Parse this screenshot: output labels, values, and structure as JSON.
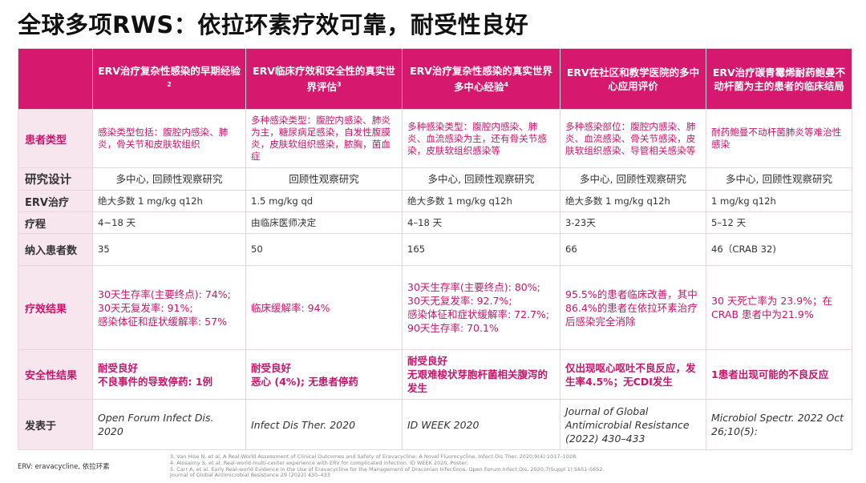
{
  "title": "全球多项RWS：依拉环素疗效可靠，耐受性良好",
  "header": {
    "corner": "",
    "columns": [
      {
        "label": "ERV治疗复杂性感染的早期经验",
        "sup": "2"
      },
      {
        "label": "ERV临床疗效和安全性的真实世界评估",
        "sup": "3"
      },
      {
        "label": "ERV治疗复杂性感染的真实世界多中心经验",
        "sup": "4"
      },
      {
        "label": "ERV在社区和教学医院的多中心应用评价",
        "sup": ""
      },
      {
        "label": "ERV治疗碳青霉烯耐药鲍曼不动杆菌为主的患者的临床结局",
        "sup": ""
      }
    ]
  },
  "rows": {
    "patient_type": {
      "label": "患者类型",
      "cells": [
        "感染类型包括：腹腔内感染、肺炎，骨关节和皮肤软组织",
        "多种感染类型：腹腔内感染、肺炎为主，糖尿病足感染，自发性腹膜炎，皮肤软组织感染，脓胸，菌血症",
        "多种感染类型：腹腔内感染、肺炎、血流感染为主，还有骨关节感染，皮肤软组织感染等",
        "多种感染部位：腹腔内感染、肺炎、血流感染、骨关节感染，皮肤软组织感染、导管相关感染等",
        "耐药鲍曼不动杆菌肺炎等难治性感染"
      ]
    },
    "design": {
      "label": "研究设计",
      "cells": [
        "多中心, 回顾性观察研究",
        "回顾性观察研究",
        "多中心, 回顾性观察研究",
        "多中心, 回顾性观察研究",
        "多中心, 回顾性观察研究"
      ]
    },
    "erv": {
      "label": "ERV治疗",
      "cells": [
        "绝大多数 1 mg/kg q12h",
        "1.5 mg/kg qd",
        "绝大多数 1 mg/kg q12h",
        "绝大多数 1 mg/kg q12h",
        "1 mg/kg q12h"
      ]
    },
    "course": {
      "label": "疗程",
      "cells": [
        "4~18 天",
        "由临床医师决定",
        "4–18 天",
        "3-23天",
        "5–12 天"
      ]
    },
    "n": {
      "label": "纳入患者数",
      "cells": [
        "35",
        "50",
        "165",
        "66",
        "46（CRAB 32)"
      ]
    },
    "efficacy": {
      "label": "疗效结果",
      "cells": [
        [
          "30天生存率(主要终点): 74%;",
          "30天无复发率: 91%;",
          "感染体征和症状缓解率: 57%"
        ],
        [
          "临床缓解率: 94%"
        ],
        [
          "30天生存率(主要终点): 80%;",
          "30天无复发率: 92.7%;",
          "感染体征和症状缓解率: 72.7%;",
          "90天生存率: 70.1%"
        ],
        [
          "95.5%的患者临床改善，其中86.4%的患者在依拉环素治疗后感染完全消除"
        ],
        [
          "30 天死亡率为 23.9%；在 CRAB 患者中为21.9%"
        ]
      ]
    },
    "safety": {
      "label": "安全性结果",
      "cells": [
        [
          "耐受良好",
          "不良事件的导致停药: 1例"
        ],
        [
          "耐受良好",
          "恶心 (4%); 无患者停药"
        ],
        [
          "耐受良好",
          "无艰难梭状芽胞杆菌相关腹泻的发生"
        ],
        [
          "仅出现呕心呕吐不良反应，发生率4.5%；无CDI发生"
        ],
        [
          "1患者出现可能的不良反应"
        ]
      ]
    },
    "publication": {
      "label": "发表于",
      "cells": [
        "Open Forum Infect Dis. 2020",
        "Infect Dis Ther. 2020",
        "ID WEEK 2020",
        "Journal of Global Antimicrobial Resistance (2022) 430–433",
        "Microbiol Spectr. 2022 Oct 26;10(5):"
      ]
    }
  },
  "footer": {
    "abbrev": "ERV: eravacycline, 依拉环素",
    "references": [
      "3. Van Hise N, et al. A Real-World Assessment of Clinical Outcomes and Safety of Eravacycline: A Novel Fluorocycline. Infect Dis Ther. 2020;9(4):1017–1028.",
      "4. Alosaimy S, et al. Real-world multi-center experience with ERV for complicated infection. ID WEEK 2020, Poster.",
      "5. Carr A, et al. Early Real-world Evidence in the Use of Eravacycline for the Management of Draconian Infections. Open Forum Infect Dis. 2020;7(Suppl 1):S651-S652.",
      "Journal of Global Antimicrobial Resistance 29 (2022) 430–433"
    ]
  },
  "colors": {
    "header_bg": "#d6186f",
    "row_head_bg": "#f7e6ee",
    "accent_pink": "#c8156b"
  }
}
